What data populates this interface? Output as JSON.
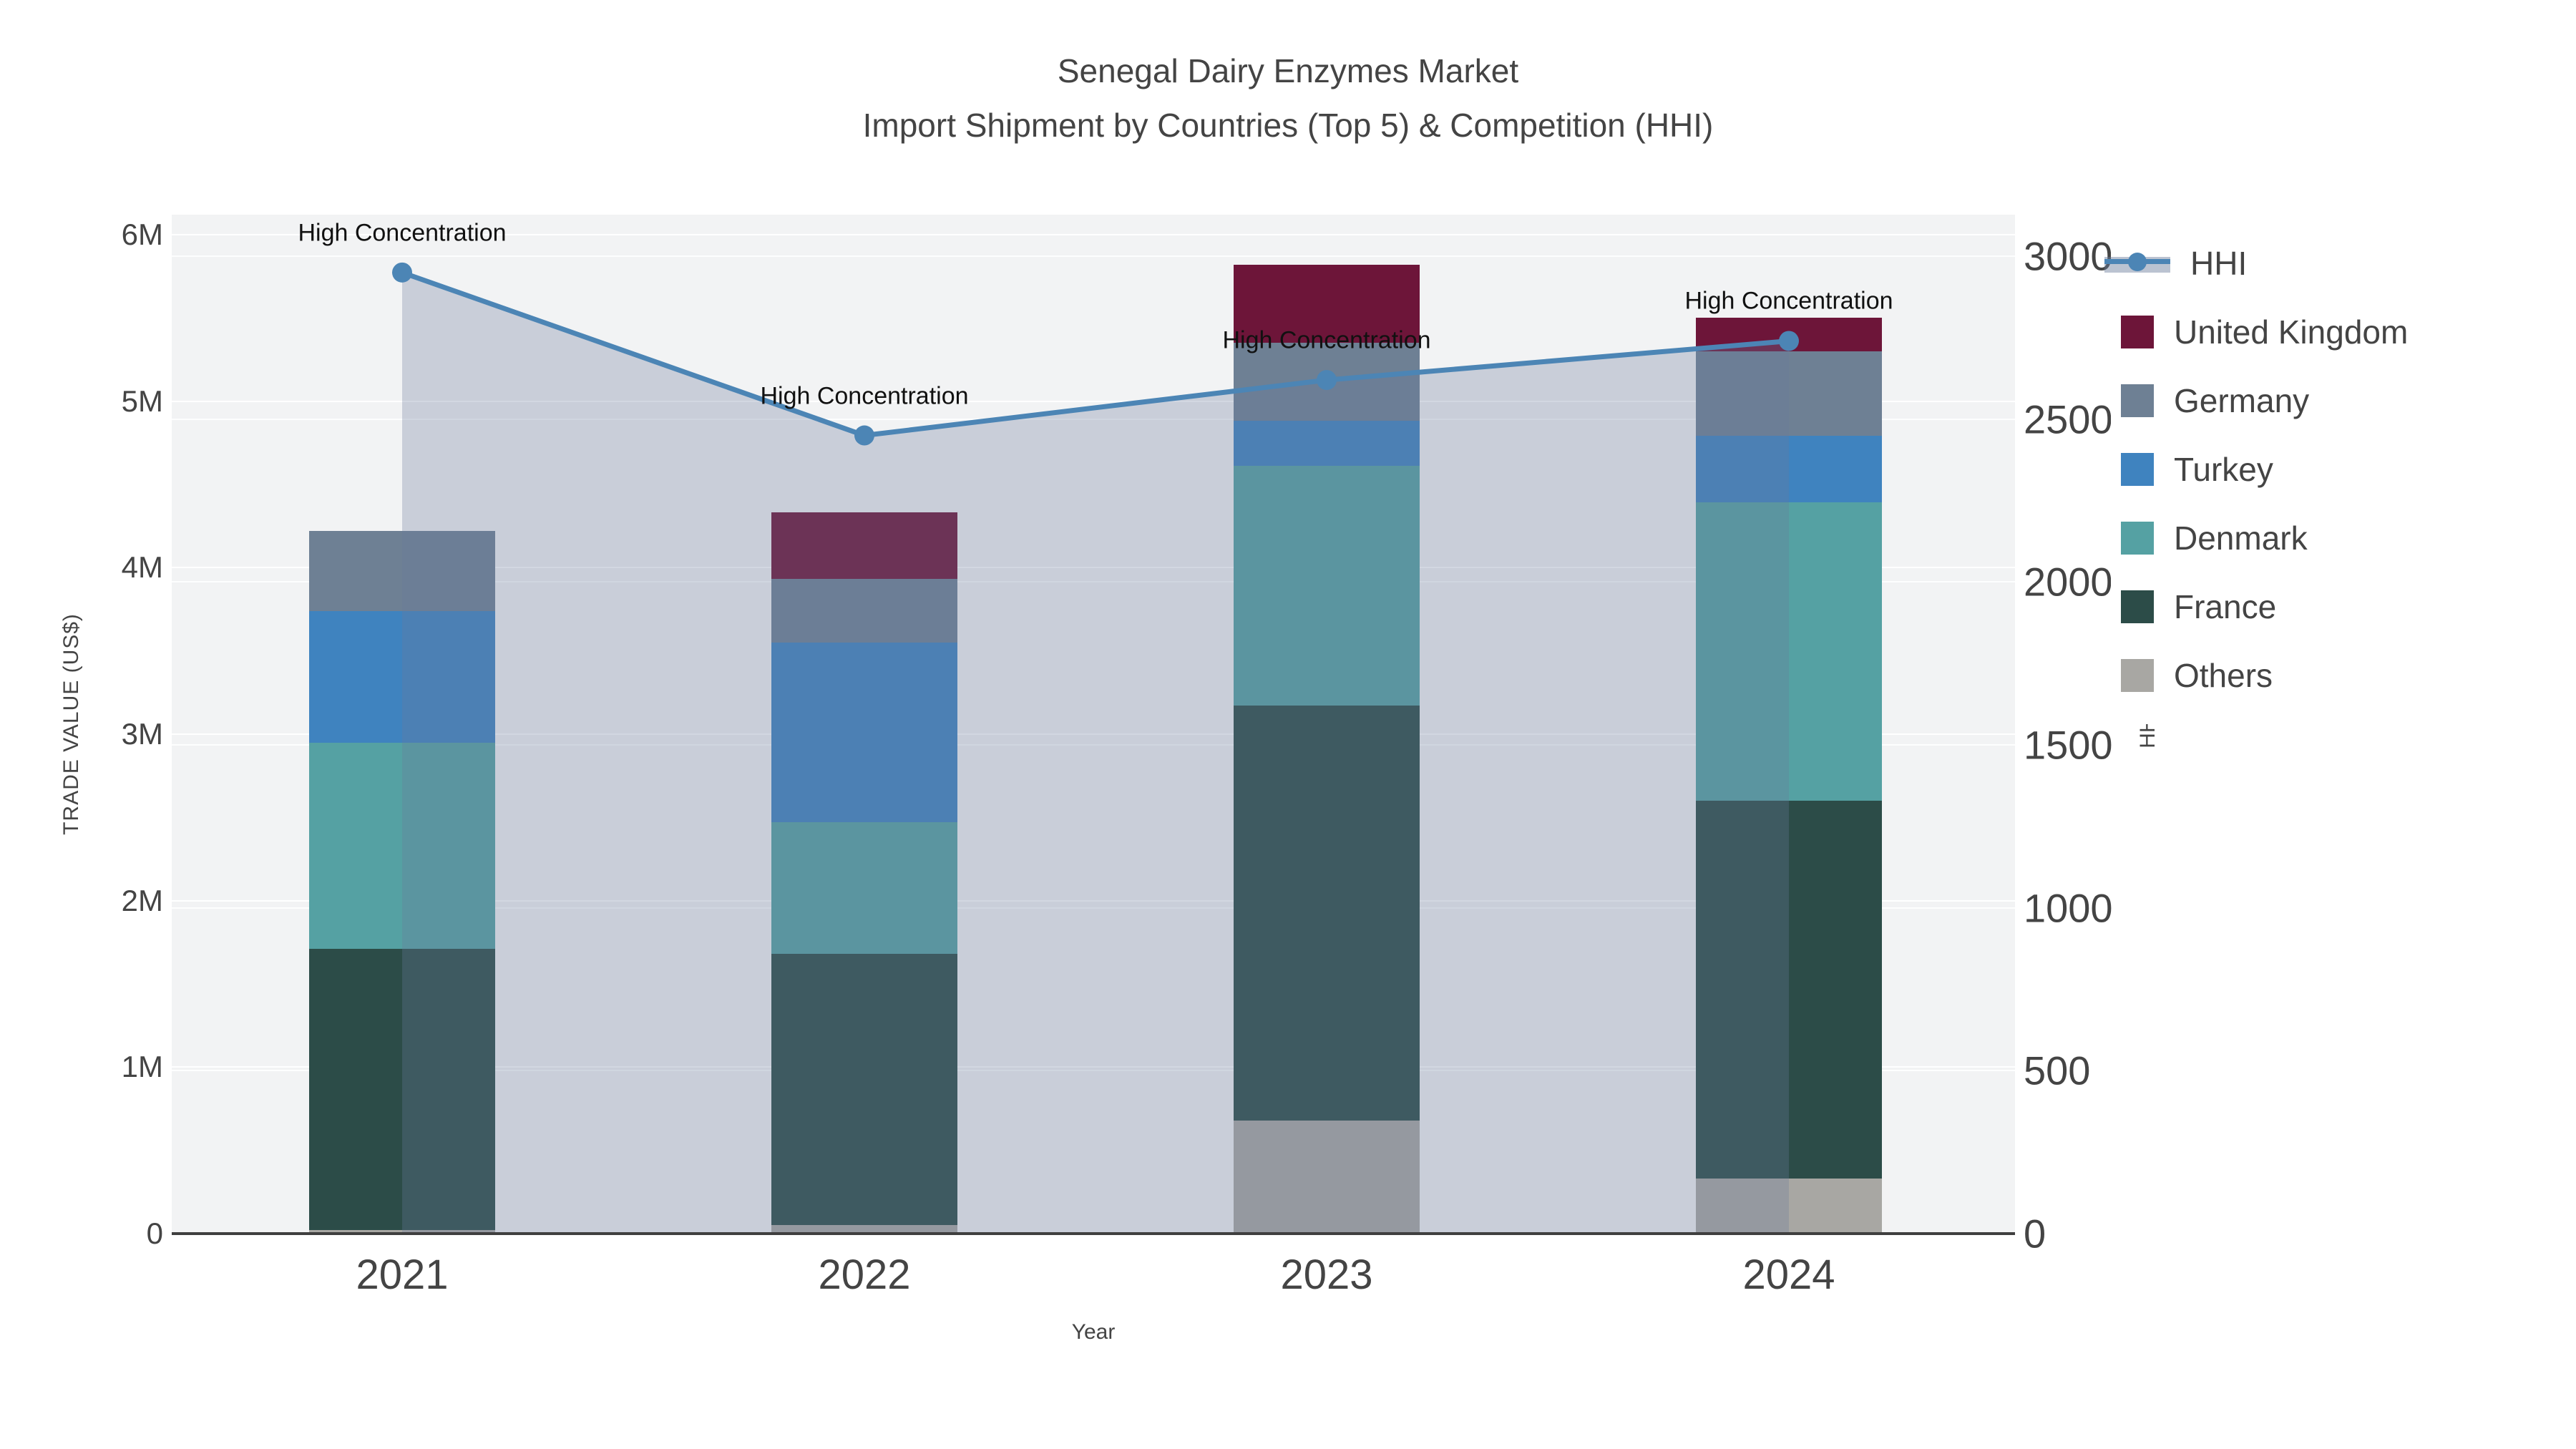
{
  "title": "Senegal Dairy Enzymes Market",
  "subtitle": "Import Shipment by Countries (Top 5) & Competition (HHI)",
  "chart_data": {
    "type": "combo",
    "bar_type": "stacked-bar",
    "line_type": "line+area",
    "categories": [
      "2021",
      "2022",
      "2023",
      "2024"
    ],
    "series": [
      {
        "name": "United Kingdom",
        "color": "#6d1539",
        "values_musd": [
          0.0,
          0.4,
          0.47,
          0.2
        ]
      },
      {
        "name": "Germany",
        "color": "#6e8094",
        "values_musd": [
          0.48,
          0.38,
          0.47,
          0.51
        ]
      },
      {
        "name": "Turkey",
        "color": "#3f83bf",
        "values_musd": [
          0.79,
          1.08,
          0.27,
          0.4
        ]
      },
      {
        "name": "Denmark",
        "color": "#55a1a3",
        "values_musd": [
          1.24,
          0.79,
          1.44,
          1.79
        ]
      },
      {
        "name": "France",
        "color": "#2c4c48",
        "values_musd": [
          1.69,
          1.63,
          2.49,
          2.27
        ]
      },
      {
        "name": "Others",
        "color": "#a8a7a3",
        "values_musd": [
          0.02,
          0.05,
          0.68,
          0.33
        ]
      }
    ],
    "stack_order_bottom_to_top": [
      "Others",
      "France",
      "Denmark",
      "Turkey",
      "Germany",
      "United Kingdom"
    ],
    "bar_totals_musd": [
      4.22,
      4.33,
      5.82,
      5.5
    ],
    "hhi_line": {
      "name": "HHI",
      "color": "#4c85b5",
      "area_fill": "rgba(105,123,154,0.30)",
      "values": [
        2950,
        2450,
        2620,
        2740
      ],
      "axis": "right"
    },
    "annotations": [
      {
        "text": "High Concentration",
        "category": "2021"
      },
      {
        "text": "High Concentration",
        "category": "2022"
      },
      {
        "text": "High Concentration",
        "category": "2023"
      },
      {
        "text": "High Concentration",
        "category": "2024"
      }
    ],
    "xlabel": "Year",
    "ylabel_left": "TRADE VALUE (US$)",
    "ylabel_right": "HHI",
    "yticks_left": [
      "0",
      "1M",
      "2M",
      "3M",
      "4M",
      "5M",
      "6M"
    ],
    "yticks_right": [
      "0",
      "500",
      "1000",
      "1500",
      "2000",
      "2500",
      "3000"
    ],
    "ylim_left_musd": [
      0,
      6.12
    ],
    "ylim_right": [
      0,
      3128
    ],
    "grid": "on",
    "legend_position": "right",
    "legend_entries": [
      "HHI",
      "United Kingdom",
      "Germany",
      "Turkey",
      "Denmark",
      "France",
      "Others"
    ],
    "plot_bgcolor": "#f2f3f4",
    "paper_bgcolor": "#ffffff"
  }
}
